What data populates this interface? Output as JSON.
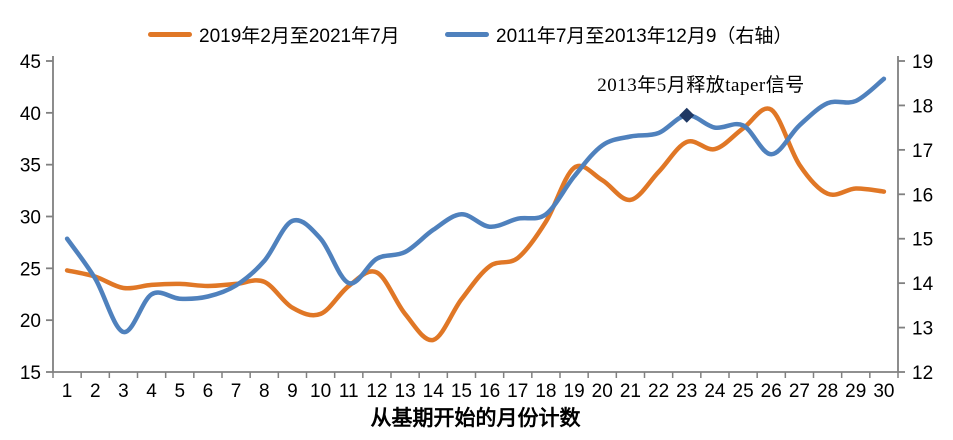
{
  "chart_data": {
    "type": "line",
    "title": "",
    "xlabel": "从基期开始的月份计数",
    "x": [
      1,
      2,
      3,
      4,
      5,
      6,
      7,
      8,
      9,
      10,
      11,
      12,
      13,
      14,
      15,
      16,
      17,
      18,
      19,
      20,
      21,
      22,
      23,
      24,
      25,
      26,
      27,
      28,
      29,
      30
    ],
    "series": [
      {
        "name": "2019年2月至2021年7月",
        "axis": "left",
        "color": "#E07726",
        "values": [
          24.8,
          24.2,
          23.1,
          23.4,
          23.5,
          23.3,
          23.5,
          23.7,
          21.2,
          20.6,
          23.3,
          24.6,
          20.6,
          18.1,
          22.0,
          25.2,
          26.0,
          29.5,
          34.7,
          33.5,
          31.6,
          34.3,
          37.2,
          36.5,
          38.5,
          40.3,
          35.0,
          32.2,
          32.7,
          32.4
        ]
      },
      {
        "name": "2011年7月至2013年12月9（右轴）",
        "axis": "right",
        "color": "#4F81BD",
        "values": [
          15.0,
          14.1,
          12.9,
          13.75,
          13.65,
          13.7,
          13.95,
          14.5,
          15.4,
          15.0,
          14.0,
          14.55,
          14.7,
          15.2,
          15.55,
          15.27,
          15.45,
          15.55,
          16.4,
          17.1,
          17.3,
          17.38,
          17.78,
          17.5,
          17.55,
          16.9,
          17.55,
          18.05,
          18.1,
          18.6
        ]
      }
    ],
    "left_axis": {
      "min": 15,
      "max": 45,
      "ticks": [
        45,
        40,
        35,
        30,
        25,
        20,
        15
      ]
    },
    "right_axis": {
      "min": 12,
      "max": 19,
      "ticks": [
        19,
        18,
        17,
        16,
        15,
        14,
        13,
        12
      ]
    },
    "annotation": {
      "text": "2013年5月释放taper信号",
      "marker": {
        "series": "right",
        "x": 23,
        "value": 17.78,
        "shape": "diamond",
        "color": "#1F3864"
      }
    },
    "legend_position": "top",
    "grid": false,
    "axis_color": "#808080",
    "smoothed": true
  }
}
